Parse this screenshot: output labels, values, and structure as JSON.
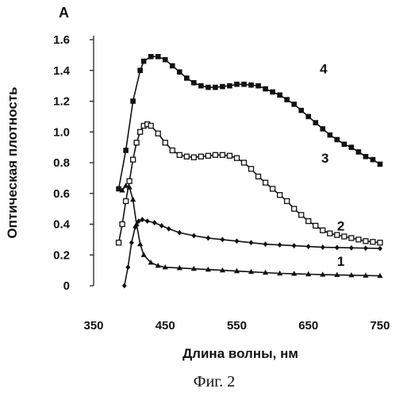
{
  "panel_label": "A",
  "caption": "Фиг. 2",
  "chart_data": {
    "type": "line",
    "xlabel": "Длина волны, нм",
    "ylabel": "Оптическая плотность",
    "xlim": [
      350,
      760
    ],
    "ylim": [
      0,
      1.6
    ],
    "xticks": [
      350,
      450,
      550,
      650,
      750
    ],
    "yticks": [
      {
        "value": 0,
        "label": "0"
      },
      {
        "value": 0.2,
        "label": "0.2"
      },
      {
        "value": 0.4,
        "label": "0.4"
      },
      {
        "value": 0.6,
        "label": "0.6"
      },
      {
        "value": 0.8,
        "label": "0.8"
      },
      {
        "value": 1.0,
        "label": "1.0"
      },
      {
        "value": 1.2,
        "label": "1.2"
      },
      {
        "value": 1.4,
        "label": "1.4"
      },
      {
        "value": 1.6,
        "label": "1.6"
      }
    ],
    "grid": false,
    "series": [
      {
        "name": "1",
        "marker": "triangle",
        "x": [
          390,
          395,
          400,
          405,
          410,
          415,
          420,
          430,
          440,
          450,
          470,
          490,
          510,
          530,
          550,
          570,
          590,
          610,
          630,
          650,
          670,
          690,
          710,
          730,
          750
        ],
        "y": [
          0.62,
          0.65,
          0.64,
          0.56,
          0.4,
          0.27,
          0.2,
          0.15,
          0.13,
          0.12,
          0.115,
          0.11,
          0.105,
          0.1,
          0.095,
          0.09,
          0.085,
          0.08,
          0.078,
          0.075,
          0.072,
          0.07,
          0.068,
          0.066,
          0.064
        ]
      },
      {
        "name": "2",
        "marker": "diamond",
        "x": [
          393,
          398,
          403,
          408,
          413,
          418,
          425,
          435,
          445,
          455,
          470,
          490,
          510,
          530,
          550,
          570,
          590,
          610,
          630,
          650,
          670,
          690,
          710,
          730,
          750
        ],
        "y": [
          0.0,
          0.12,
          0.28,
          0.38,
          0.42,
          0.43,
          0.42,
          0.41,
          0.39,
          0.37,
          0.345,
          0.325,
          0.31,
          0.3,
          0.29,
          0.28,
          0.27,
          0.265,
          0.26,
          0.255,
          0.25,
          0.248,
          0.246,
          0.244,
          0.242
        ]
      },
      {
        "name": "3",
        "marker": "open-square",
        "x": [
          385,
          390,
          395,
          400,
          405,
          410,
          415,
          420,
          425,
          430,
          440,
          450,
          460,
          470,
          480,
          490,
          500,
          510,
          520,
          530,
          540,
          550,
          560,
          570,
          580,
          590,
          600,
          610,
          620,
          630,
          640,
          650,
          660,
          670,
          680,
          690,
          700,
          710,
          720,
          730,
          740,
          750
        ],
        "y": [
          0.28,
          0.4,
          0.55,
          0.68,
          0.82,
          0.93,
          1.0,
          1.04,
          1.05,
          1.04,
          0.99,
          0.93,
          0.88,
          0.85,
          0.84,
          0.835,
          0.84,
          0.845,
          0.85,
          0.85,
          0.845,
          0.83,
          0.8,
          0.76,
          0.71,
          0.67,
          0.63,
          0.59,
          0.55,
          0.5,
          0.46,
          0.42,
          0.39,
          0.36,
          0.34,
          0.33,
          0.32,
          0.31,
          0.3,
          0.29,
          0.285,
          0.28
        ]
      },
      {
        "name": "4",
        "marker": "filled-square",
        "x": [
          385,
          395,
          405,
          415,
          420,
          430,
          440,
          450,
          460,
          470,
          480,
          490,
          500,
          510,
          520,
          530,
          540,
          550,
          560,
          570,
          580,
          590,
          600,
          610,
          620,
          630,
          640,
          650,
          660,
          670,
          680,
          690,
          700,
          710,
          720,
          730,
          740,
          750
        ],
        "y": [
          0.63,
          0.88,
          1.2,
          1.4,
          1.46,
          1.49,
          1.49,
          1.47,
          1.43,
          1.39,
          1.35,
          1.32,
          1.3,
          1.29,
          1.29,
          1.295,
          1.3,
          1.31,
          1.31,
          1.305,
          1.3,
          1.28,
          1.26,
          1.24,
          1.21,
          1.18,
          1.14,
          1.1,
          1.06,
          1.02,
          0.98,
          0.95,
          0.92,
          0.9,
          0.87,
          0.84,
          0.82,
          0.79
        ]
      }
    ],
    "curve_labels": [
      {
        "series": "1",
        "text": "1",
        "x": 690,
        "y": 0.13
      },
      {
        "series": "2",
        "text": "2",
        "x": 690,
        "y": 0.36
      },
      {
        "series": "3",
        "text": "3",
        "x": 668,
        "y": 0.8
      },
      {
        "series": "4",
        "text": "4",
        "x": 666,
        "y": 1.38
      }
    ]
  }
}
